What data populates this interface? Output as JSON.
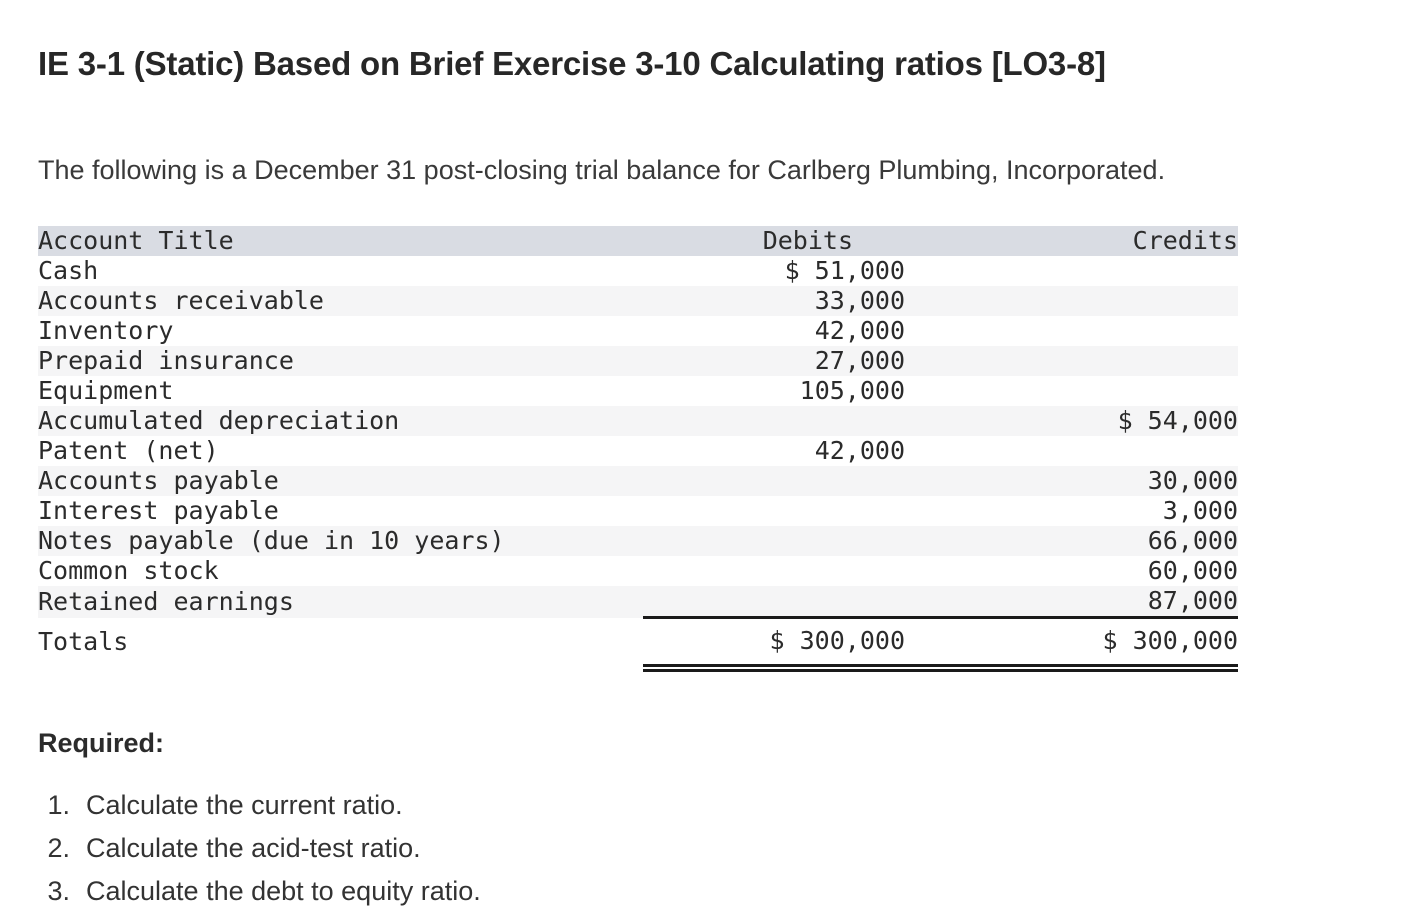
{
  "page": {
    "title": "IE 3-1 (Static) Based on Brief Exercise 3-10 Calculating ratios [LO3-8]",
    "intro": "The following is a December 31 post-closing trial balance for Carlberg Plumbing, Incorporated.",
    "required_label": "Required:"
  },
  "requirements": [
    {
      "num": "1.",
      "text": "Calculate the current ratio."
    },
    {
      "num": "2.",
      "text": "Calculate the acid-test ratio."
    },
    {
      "num": "3.",
      "text": "Calculate the debt to equity ratio."
    }
  ],
  "trial_balance": {
    "columns": {
      "account": "Account Title",
      "debits": "Debits",
      "credits": "Credits"
    },
    "rows": [
      {
        "account": "Cash",
        "debit": "$ 51,000",
        "credit": ""
      },
      {
        "account": "Accounts receivable",
        "debit": "33,000",
        "credit": ""
      },
      {
        "account": "Inventory",
        "debit": "42,000",
        "credit": ""
      },
      {
        "account": "Prepaid insurance",
        "debit": "27,000",
        "credit": ""
      },
      {
        "account": "Equipment",
        "debit": "105,000",
        "credit": ""
      },
      {
        "account": "Accumulated depreciation",
        "debit": "",
        "credit": "$ 54,000"
      },
      {
        "account": "Patent (net)",
        "debit": "42,000",
        "credit": ""
      },
      {
        "account": "Accounts payable",
        "debit": "",
        "credit": "30,000"
      },
      {
        "account": "Interest payable",
        "debit": "",
        "credit": "3,000"
      },
      {
        "account": "Notes payable (due in 10 years)",
        "debit": "",
        "credit": "66,000"
      },
      {
        "account": "Common stock",
        "debit": "",
        "credit": "60,000"
      },
      {
        "account": "Retained earnings",
        "debit": "",
        "credit": "87,000"
      }
    ],
    "totals": {
      "label": "Totals",
      "debit": "$ 300,000",
      "credit": "$ 300,000"
    },
    "colors": {
      "header_bg": "#d9dce3",
      "stripe_bg": "#f5f5f6",
      "rule": "#1a1a1a"
    }
  }
}
